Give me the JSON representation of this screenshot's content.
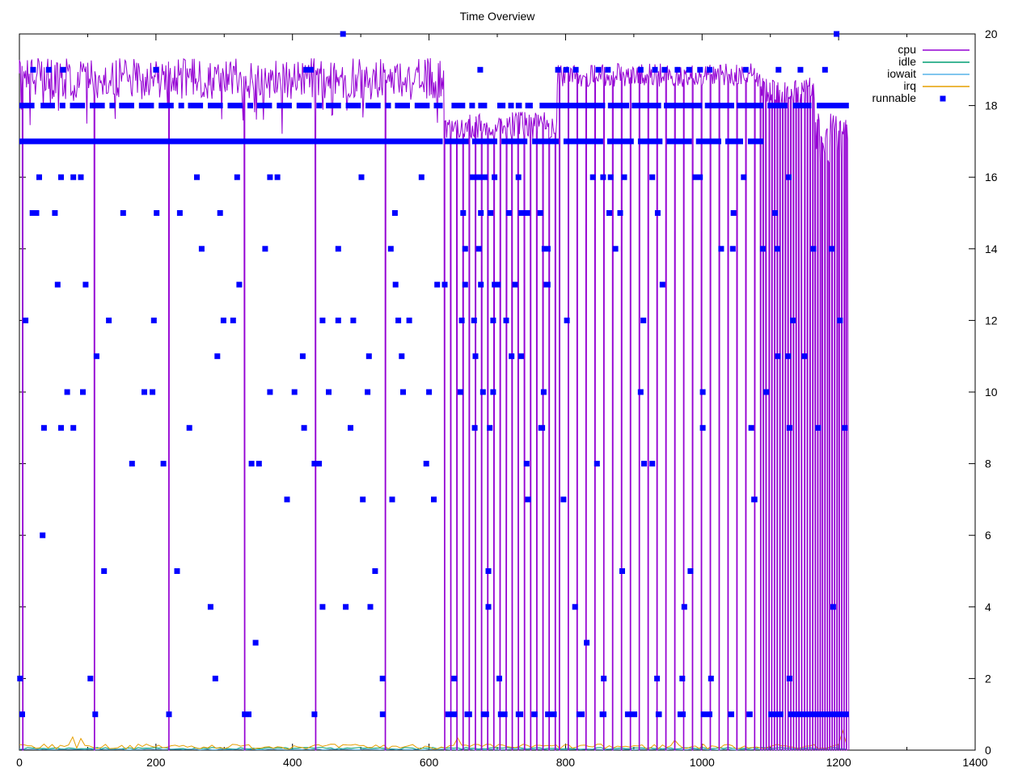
{
  "page": {
    "title": "Time Overview"
  },
  "colors": {
    "cpu": "#9400D3",
    "idle": "#009E73",
    "iowait": "#56B4E9",
    "irq": "#E69F00",
    "runnable": "#0000FF",
    "axis": "#000000",
    "background": "#FFFFFF"
  },
  "chart_data": {
    "type": "line+scatter",
    "title": "Time Overview",
    "xlim": [
      0,
      1400
    ],
    "ylim": [
      0,
      20
    ],
    "x_major_tick_step": 200,
    "x_minor_tick_step": 100,
    "y_tick_step": 2,
    "y_labels_side": "right",
    "grid": false,
    "x_data_end": 1215,
    "legend": {
      "position": "top-right",
      "entries": [
        {
          "label": "cpu",
          "type": "line",
          "color_key": "cpu"
        },
        {
          "label": "idle",
          "type": "line",
          "color_key": "idle"
        },
        {
          "label": "iowait",
          "type": "line",
          "color_key": "iowait"
        },
        {
          "label": "irq",
          "type": "line",
          "color_key": "irq"
        },
        {
          "label": "runnable",
          "type": "point",
          "color_key": "runnable"
        }
      ]
    },
    "cpu_line": {
      "seed": 7,
      "sample_step": 1.3,
      "segments": [
        {
          "x0": 0,
          "x1": 622,
          "base": 18.75,
          "amp": 1.15,
          "dip_chance": 0.06,
          "dip": 0.7
        },
        {
          "x0": 622,
          "x1": 788,
          "base": 17.45,
          "amp": 0.75,
          "dip_chance": 0.0,
          "dip": 0
        },
        {
          "x0": 788,
          "x1": 1085,
          "base": 18.85,
          "amp": 0.65,
          "dip_chance": 0.0,
          "dip": 0
        },
        {
          "x0": 1085,
          "x1": 1165,
          "base": 18.35,
          "amp": 0.9,
          "dip_chance": 0.0,
          "dip": 0
        },
        {
          "x0": 1165,
          "x1": 1214,
          "base": 17.1,
          "amp": 1.4,
          "dip_chance": 0.0,
          "dip": 0
        }
      ],
      "drops_explicit": [
        5,
        110,
        219,
        330,
        434,
        536
      ],
      "drops_ranges": [
        {
          "from": 623,
          "to": 786,
          "step": 9
        },
        {
          "from": 791,
          "to": 1080,
          "step": 13
        },
        {
          "from": 1086,
          "to": 1164,
          "step": 4
        },
        {
          "from": 1166,
          "to": 1213,
          "step": 3.5
        }
      ]
    },
    "baseline_series": [
      {
        "name": "idle",
        "color_key": "idle",
        "base": 0.05,
        "jitter": 0.05,
        "x0": 0,
        "x1": 1215
      },
      {
        "name": "iowait",
        "color_key": "iowait",
        "base": 0.02,
        "jitter": 0.02,
        "x0": 0,
        "x1": 1215
      },
      {
        "name": "irq",
        "color_key": "irq",
        "base": 0.1,
        "jitter": 0.14,
        "x0": 0,
        "x1": 1215,
        "bumps": [
          {
            "x": 78,
            "h": 0.3
          },
          {
            "x": 92,
            "h": 0.25
          },
          {
            "x": 640,
            "h": 0.2
          },
          {
            "x": 960,
            "h": 0.2
          },
          {
            "x": 1205,
            "h": 0.5
          }
        ]
      }
    ],
    "runnable": {
      "marker": "square",
      "marker_px": 7,
      "rows": [
        {
          "y": 20,
          "points": [
            474,
            1197
          ],
          "dashes": []
        },
        {
          "y": 19,
          "points": [
            20,
            43,
            64,
            200,
            675,
            789,
            801,
            815,
            848,
            862,
            910,
            931,
            945,
            964,
            981,
            997,
            1011,
            1064,
            1112,
            1144,
            1180
          ],
          "dashes": [
            [
              416,
              431
            ]
          ]
        },
        {
          "y": 18,
          "points": [],
          "dashes": [
            [
              0,
              22
            ],
            [
              31,
              52
            ],
            [
              59,
              67
            ],
            [
              74,
              96
            ],
            [
              103,
              125
            ],
            [
              132,
              139
            ],
            [
              146,
              168
            ],
            [
              175,
              197
            ],
            [
              204,
              226
            ],
            [
              233,
              240
            ],
            [
              247,
              269
            ],
            [
              276,
              298
            ],
            [
              305,
              327
            ],
            [
              334,
              341
            ],
            [
              348,
              370
            ],
            [
              377,
              399
            ],
            [
              406,
              428
            ],
            [
              435,
              442
            ],
            [
              449,
              471
            ],
            [
              478,
              500
            ],
            [
              507,
              529
            ],
            [
              536,
              543
            ],
            [
              550,
              572
            ],
            [
              579,
              601
            ],
            [
              607,
              620
            ],
            [
              633,
              653
            ],
            [
              659,
              665
            ],
            [
              672,
              685
            ],
            [
              700,
              712
            ],
            [
              716,
              723
            ],
            [
              727,
              736
            ],
            [
              741,
              752
            ],
            [
              762,
              858
            ],
            [
              862,
              893
            ],
            [
              897,
              940
            ],
            [
              944,
              1000
            ],
            [
              1004,
              1047
            ],
            [
              1051,
              1090
            ],
            [
              1096,
              1125
            ],
            [
              1133,
              1160
            ],
            [
              1168,
              1215
            ]
          ]
        },
        {
          "y": 17,
          "points": [],
          "dashes": [
            [
              0,
              620
            ],
            [
              623,
              658
            ],
            [
              663,
              700
            ],
            [
              706,
              744
            ],
            [
              751,
              790
            ],
            [
              797,
              855
            ],
            [
              861,
              900
            ],
            [
              906,
              942
            ],
            [
              948,
              985
            ],
            [
              991,
              1028
            ],
            [
              1034,
              1060
            ],
            [
              1067,
              1090
            ]
          ]
        },
        {
          "y": 16,
          "points": [
            29,
            61,
            79,
            90,
            260,
            319,
            367,
            378,
            501,
            589,
            696,
            731,
            840,
            855,
            866,
            886,
            927,
            1061,
            1127
          ],
          "dashes": [
            [
              660,
              686
            ],
            [
              986,
              1001
            ]
          ]
        },
        {
          "y": 15,
          "points": [
            52,
            152,
            201,
            235,
            294,
            550,
            650,
            676,
            690,
            717,
            763,
            864,
            880,
            935,
            1046,
            1107
          ],
          "dashes": [
            [
              15,
              29
            ],
            [
              731,
              748
            ]
          ]
        },
        {
          "y": 14,
          "points": [
            267,
            360,
            467,
            544,
            653,
            673,
            873,
            1028,
            1045,
            1089,
            1163,
            1190
          ],
          "dashes": [
            [
              765,
              778
            ],
            [
              1106,
              1114
            ]
          ]
        },
        {
          "y": 13,
          "points": [
            56,
            97,
            322,
            551,
            612,
            623,
            653,
            676,
            726,
            942
          ],
          "dashes": [
            [
              692,
              705
            ],
            [
              768,
              778
            ]
          ]
        },
        {
          "y": 12,
          "points": [
            9,
            131,
            197,
            299,
            313,
            444,
            467,
            489,
            555,
            571,
            648,
            666,
            694,
            713,
            802,
            914,
            1133,
            1202
          ],
          "dashes": []
        },
        {
          "y": 11,
          "points": [
            113,
            290,
            415,
            512,
            560,
            668,
            721,
            735,
            1111,
            1126,
            1150
          ],
          "dashes": []
        },
        {
          "y": 10,
          "points": [
            70,
            93,
            183,
            195,
            367,
            403,
            453,
            510,
            562,
            600,
            646,
            679,
            694,
            768,
            910,
            1001,
            1094
          ],
          "dashes": []
        },
        {
          "y": 9,
          "points": [
            36,
            61,
            79,
            249,
            417,
            485,
            667,
            689,
            1001,
            1072,
            1128,
            1170,
            1209
          ],
          "dashes": [
            [
              760,
              770
            ]
          ]
        },
        {
          "y": 8,
          "points": [
            165,
            211,
            340,
            351,
            596,
            743,
            846,
            915,
            927
          ],
          "dashes": [
            [
              428,
              443
            ]
          ]
        },
        {
          "y": 7,
          "points": [
            392,
            503,
            546,
            607,
            745,
            797
          ],
          "dashes": [
            [
              1072,
              1081
            ]
          ]
        },
        {
          "y": 6,
          "points": [
            34
          ],
          "dashes": []
        },
        {
          "y": 5,
          "points": [
            124,
            231,
            521,
            687,
            883,
            983
          ],
          "dashes": []
        },
        {
          "y": 4,
          "points": [
            280,
            444,
            478,
            514,
            687,
            814,
            974,
            1192
          ],
          "dashes": []
        },
        {
          "y": 3,
          "points": [
            346,
            831
          ],
          "dashes": []
        },
        {
          "y": 2,
          "points": [
            1,
            104,
            287,
            532,
            637,
            703,
            856,
            934,
            971,
            1013,
            1128
          ],
          "dashes": []
        },
        {
          "y": 1,
          "points": [],
          "dashes": [
            [
              0,
              6
            ],
            [
              107,
              113
            ],
            [
              215,
              221
            ],
            [
              326,
              340
            ],
            [
              428,
              434
            ],
            [
              528,
              534
            ],
            [
              624,
              641
            ],
            [
              652,
              663
            ],
            [
              676,
              688
            ],
            [
              701,
              715
            ],
            [
              727,
              738
            ],
            [
              750,
              759
            ],
            [
              770,
              787
            ],
            [
              816,
              828
            ],
            [
              850,
              860
            ],
            [
              887,
              905
            ],
            [
              932,
              941
            ],
            [
              964,
              976
            ],
            [
              998,
              1015
            ],
            [
              1038,
              1047
            ],
            [
              1065,
              1074
            ],
            [
              1097,
              1119
            ],
            [
              1126,
              1215
            ]
          ]
        }
      ]
    }
  }
}
